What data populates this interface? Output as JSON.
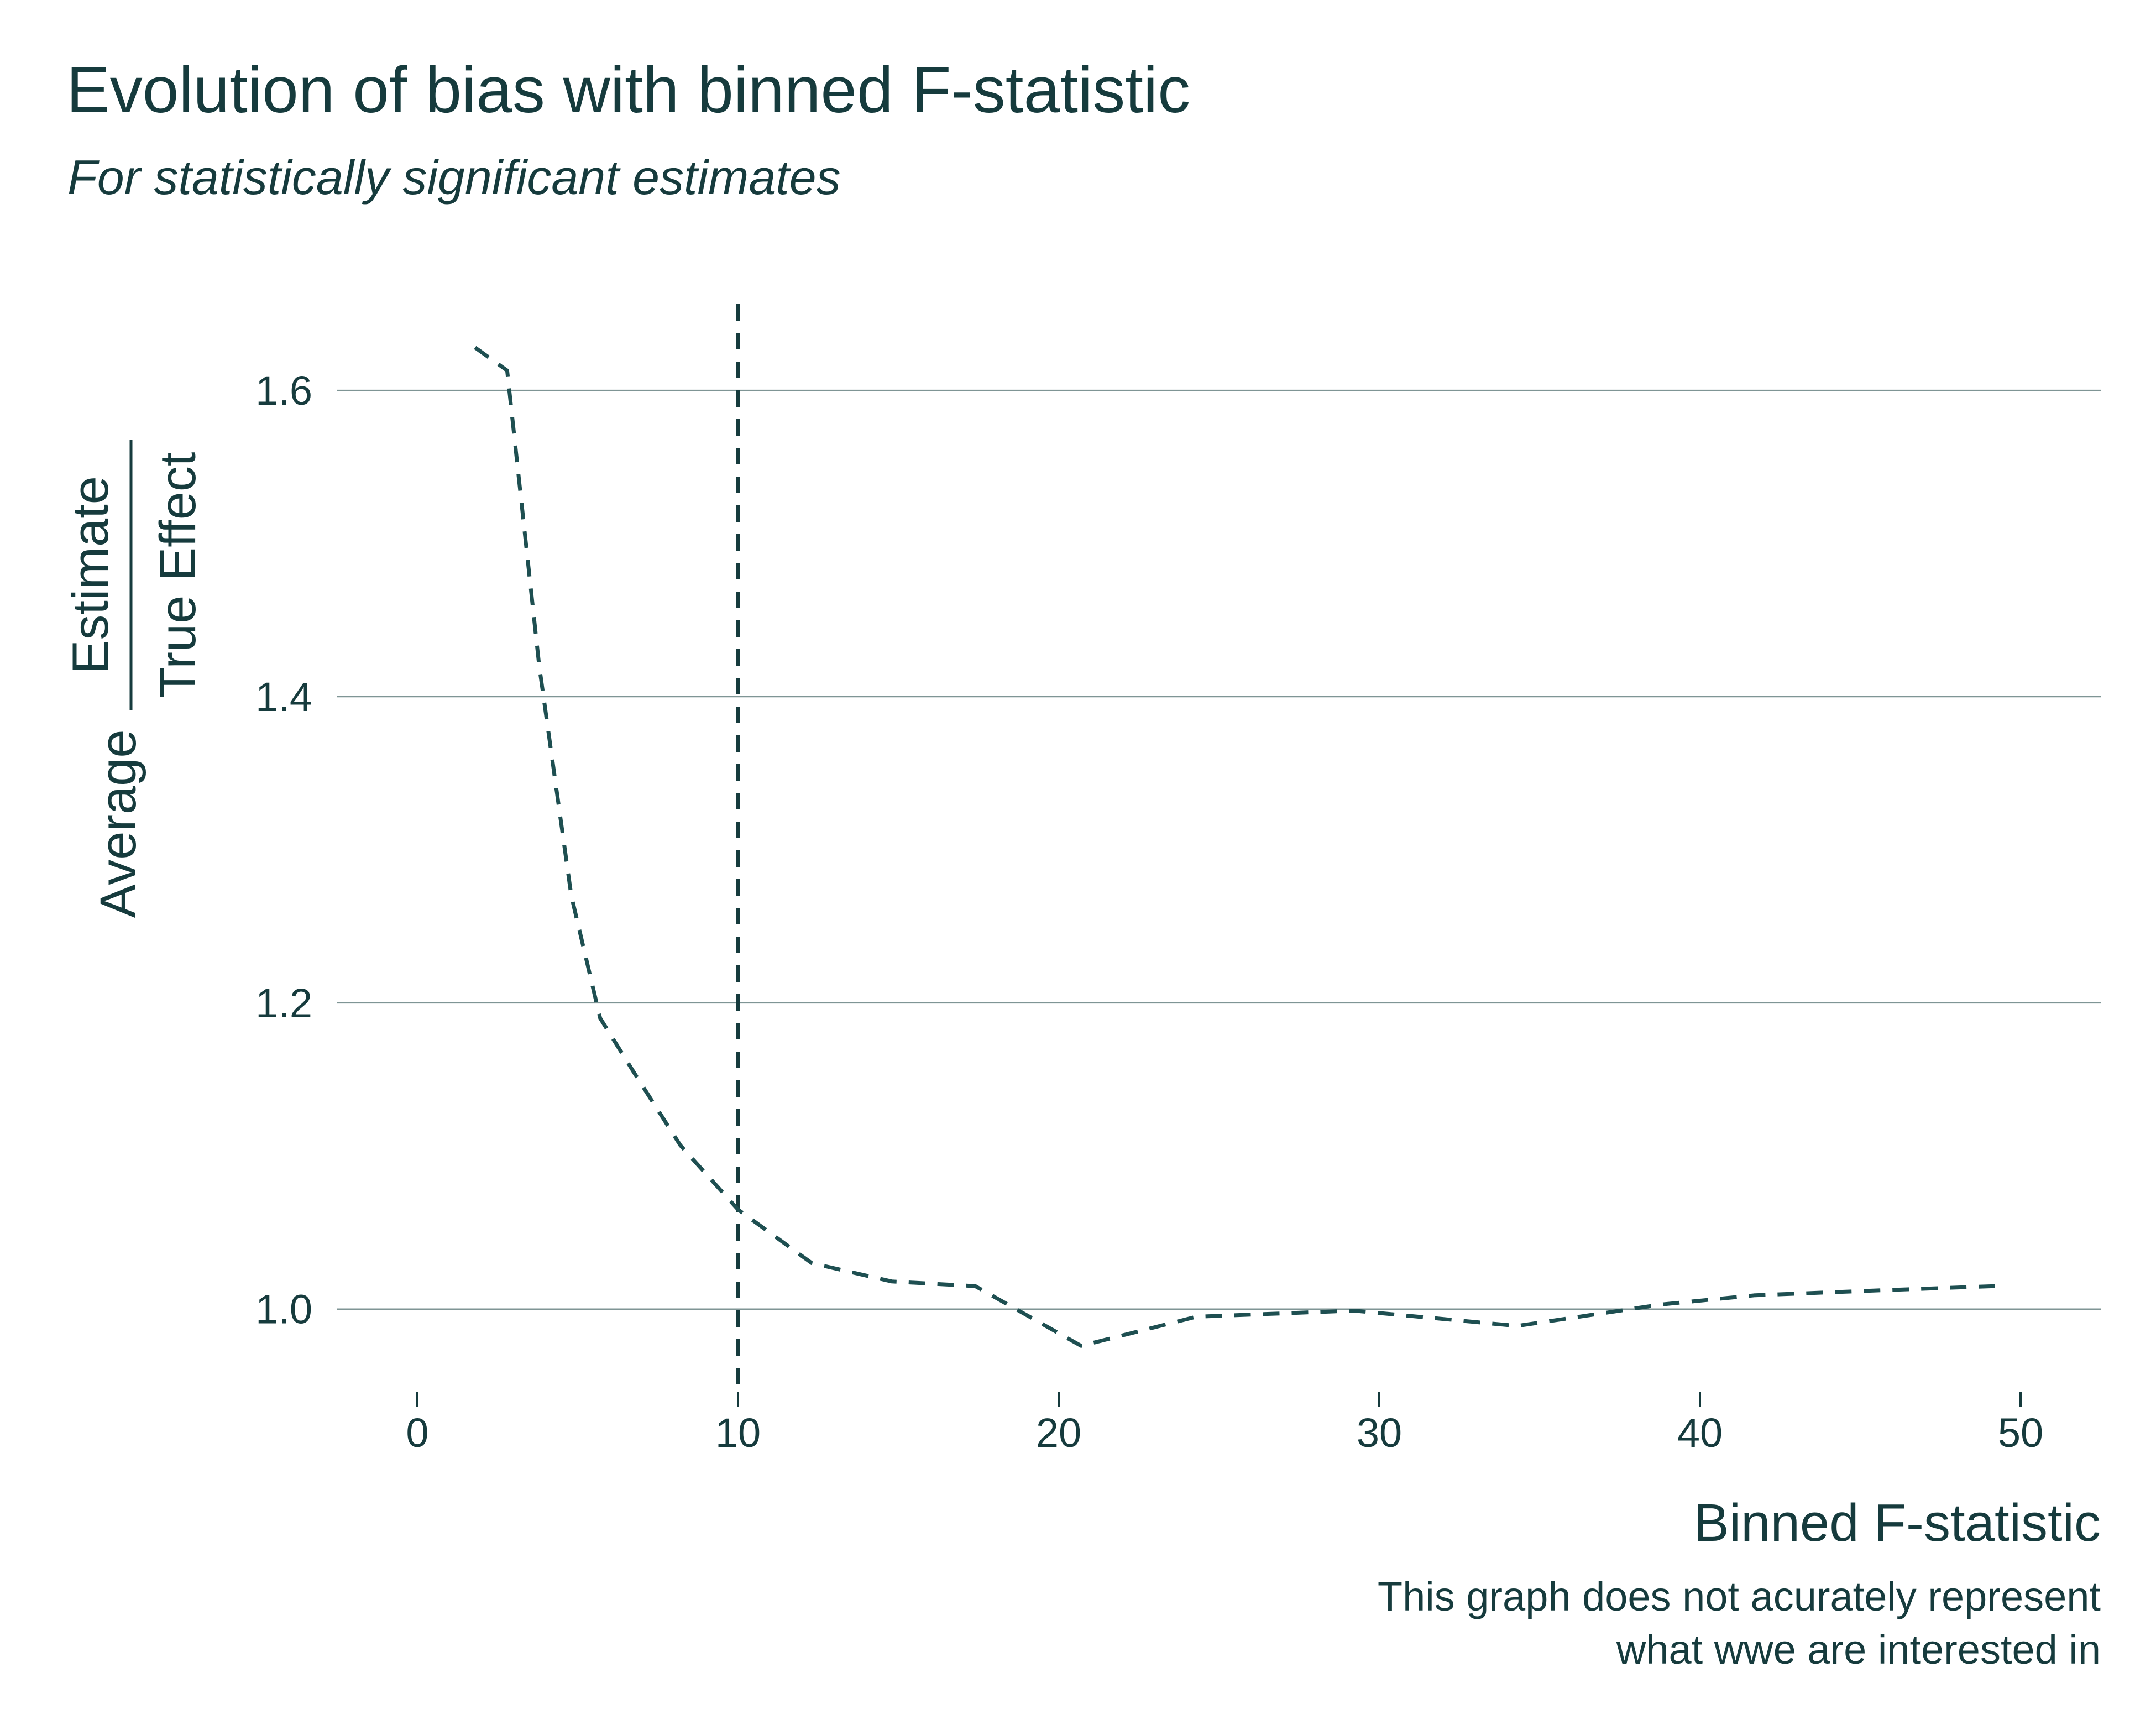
{
  "chart_data": {
    "type": "line",
    "title": "Evolution of bias with binned F-statistic",
    "subtitle": "For statistically significant estimates",
    "xlabel": "Binned F-statistic",
    "ylabel": {
      "prefix": "Average",
      "numerator": "Estimate",
      "denominator": "True Effect"
    },
    "caption": [
      "This graph does not acurately represent",
      "what wwe are interested in"
    ],
    "xlim": [
      -2.5,
      52.5
    ],
    "ylim": [
      0.945,
      1.66
    ],
    "x_ticks": [
      0,
      10,
      20,
      30,
      40,
      50
    ],
    "x_tick_labels": [
      "0",
      "10",
      "20",
      "30",
      "40",
      "50"
    ],
    "y_ticks": [
      1.0,
      1.2,
      1.4,
      1.6
    ],
    "y_tick_labels": [
      "1.0",
      "1.2",
      "1.4",
      "1.6"
    ],
    "grid": "horizontal",
    "series": [
      {
        "x": [
          1.8,
          2.8,
          3.8,
          4.8,
          5.7,
          6.8,
          8.2,
          10.0,
          12.3,
          14.8,
          17.4,
          20.7,
          24.3,
          29.2,
          34.3,
          38.8,
          41.7,
          45.3,
          49.2
        ],
        "y": [
          1.628,
          1.613,
          1.42,
          1.27,
          1.19,
          1.153,
          1.107,
          1.065,
          1.03,
          1.018,
          1.015,
          0.976,
          0.995,
          0.999,
          0.989,
          1.003,
          1.009,
          1.012,
          1.015
        ],
        "style": "dashed",
        "color": "#1e4f51"
      }
    ],
    "vline": {
      "x": 10,
      "style": "dashed",
      "color": "#163b3d"
    }
  },
  "colors": {
    "text": "#163b3d",
    "line": "#1e4f51",
    "grid": "#7f9595"
  }
}
